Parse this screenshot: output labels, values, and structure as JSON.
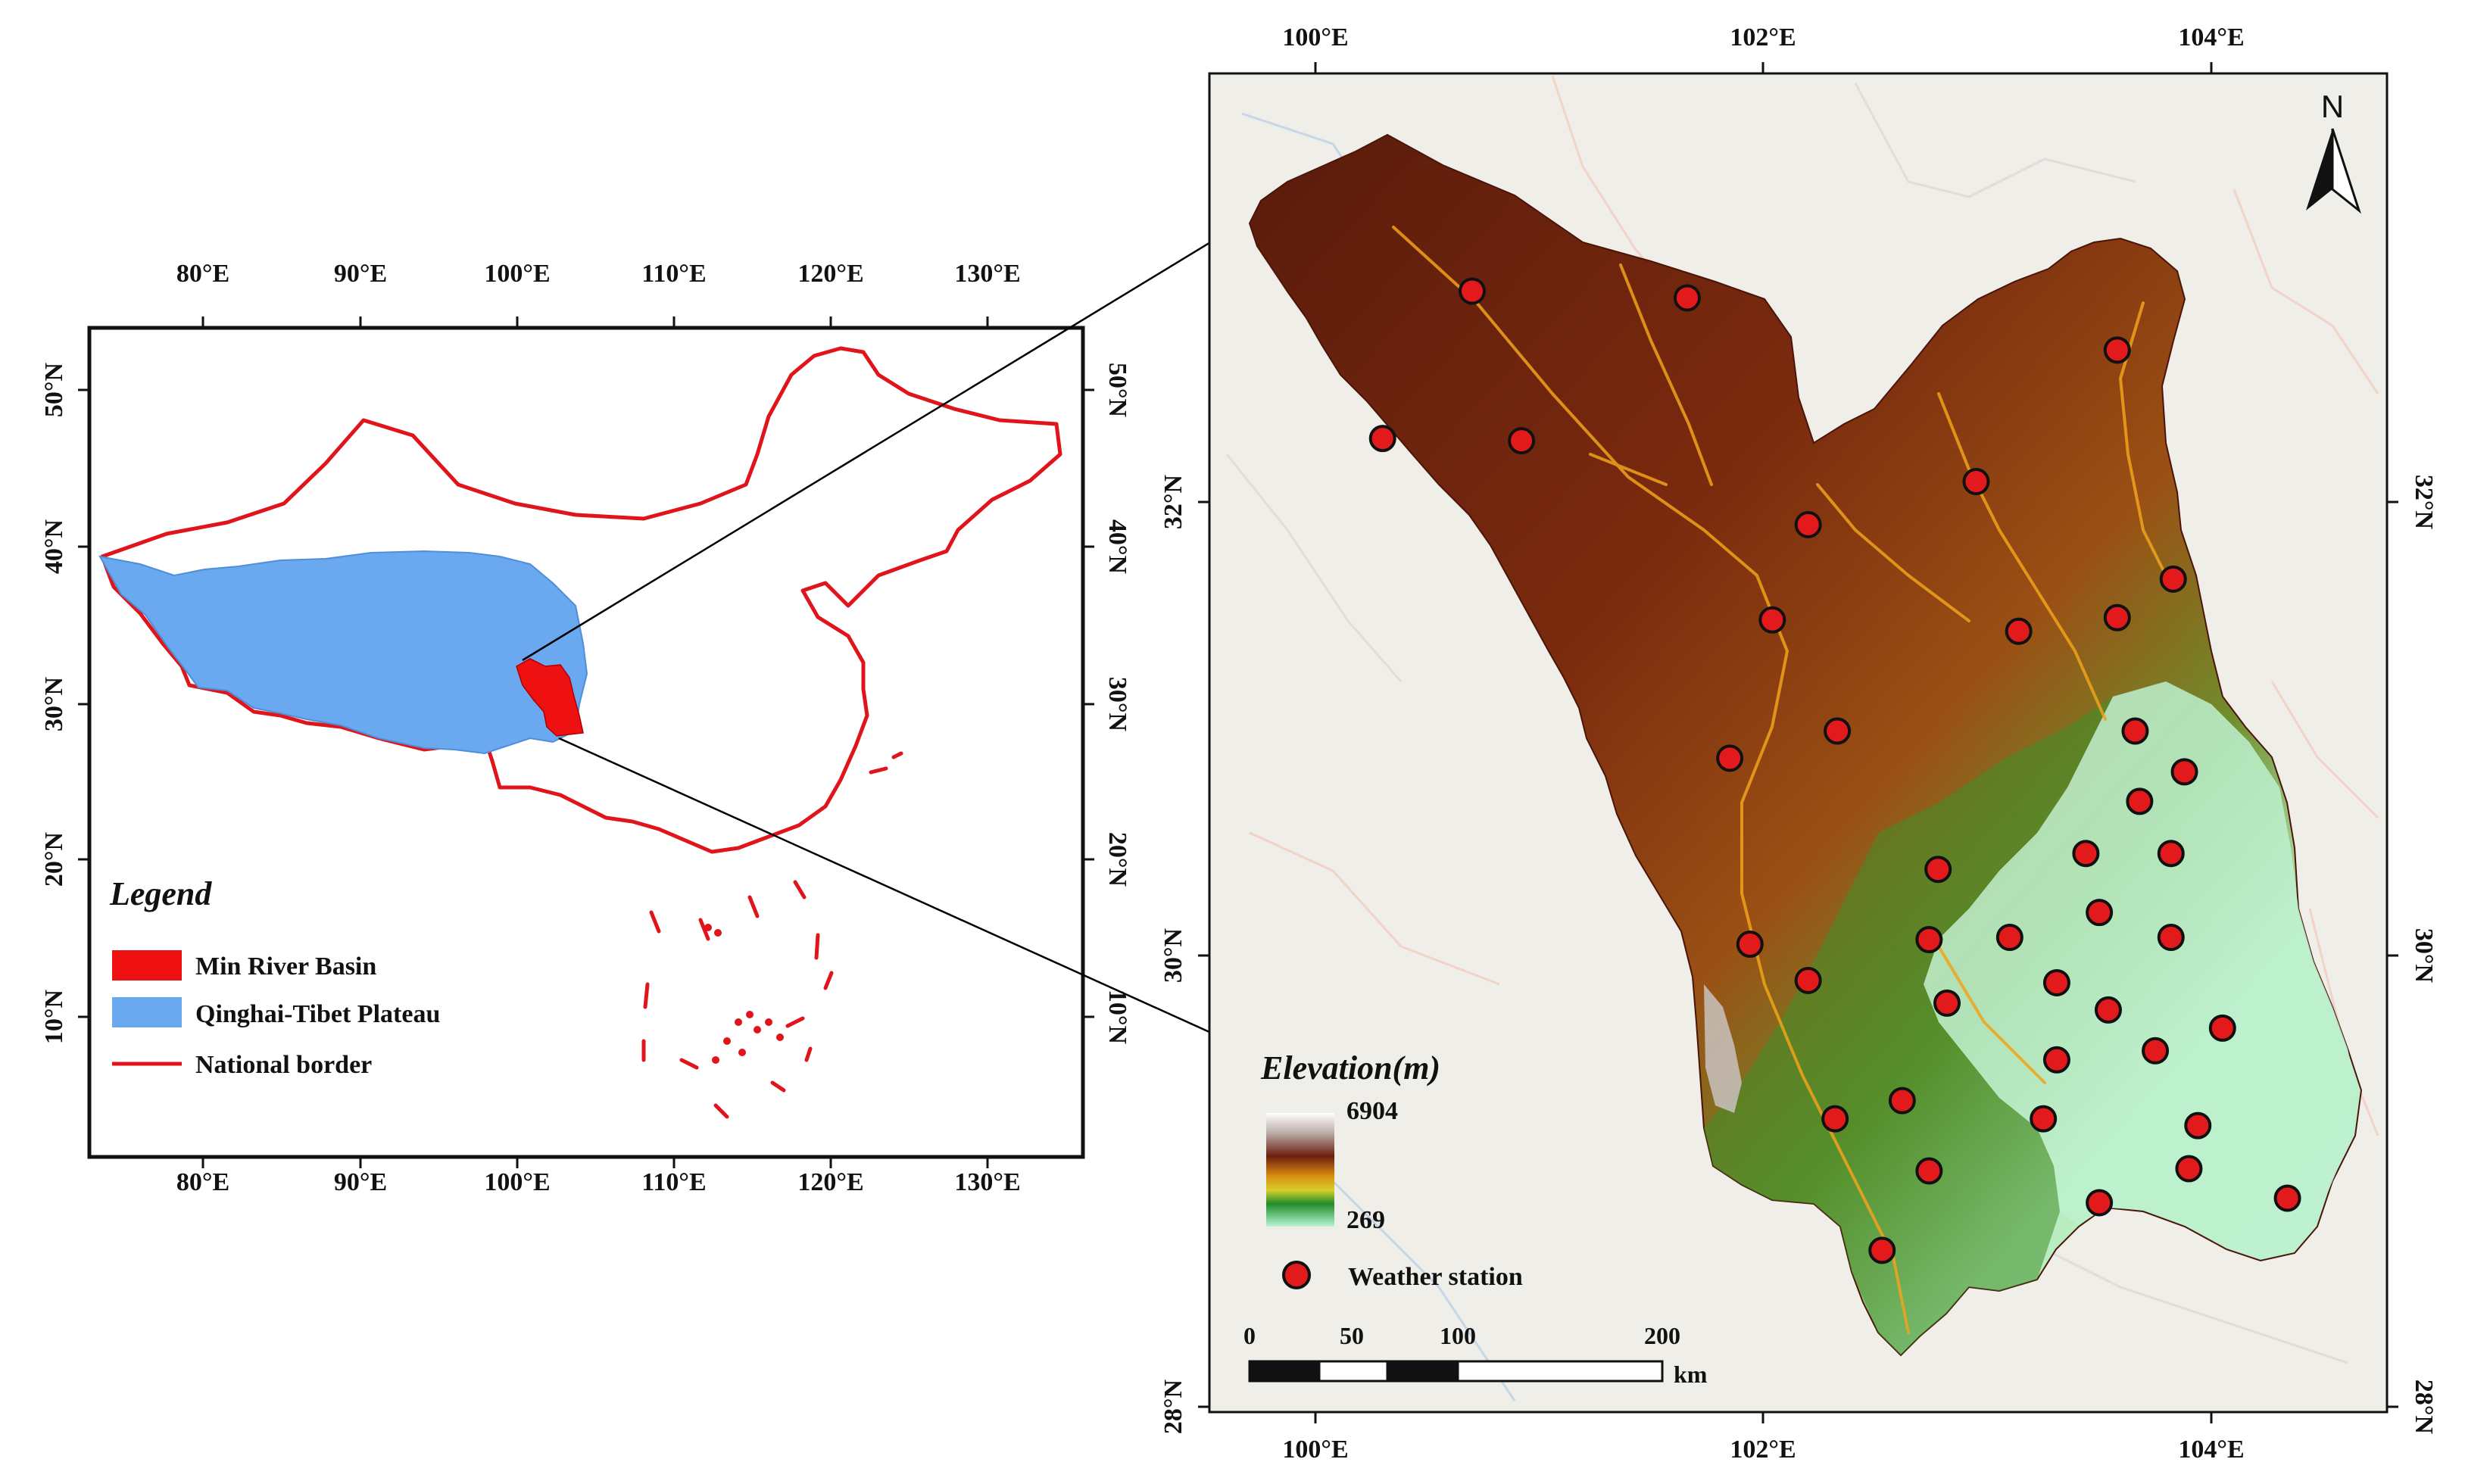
{
  "colors": {
    "national_border": "#e0141b",
    "qinghai_tibet": "#6aa8f0",
    "min_river_basin": "#ef1111",
    "basemap_bg": "#efeee9",
    "station_fill": "#e31a1c"
  },
  "china_map": {
    "top_ticks": [
      "80°E",
      "90°E",
      "100°E",
      "110°E",
      "120°E",
      "130°E"
    ],
    "bottom_ticks": [
      "80°E",
      "90°E",
      "100°E",
      "110°E",
      "120°E",
      "130°E"
    ],
    "left_ticks": [
      "50°N",
      "40°N",
      "30°N",
      "20°N",
      "10°N"
    ],
    "right_ticks": [
      "50°N",
      "40°N",
      "30°N",
      "20°N",
      "10°N"
    ],
    "legend": {
      "title": "Legend",
      "items": [
        {
          "label": "Min River Basin",
          "symbol": "red-box"
        },
        {
          "label": "Qinghai-Tibet Plateau",
          "symbol": "blue-box"
        },
        {
          "label": "National border",
          "symbol": "red-line"
        }
      ]
    }
  },
  "basin_map": {
    "top_ticks": [
      "100°E",
      "102°E",
      "104°E"
    ],
    "bottom_ticks": [
      "100°E",
      "102°E",
      "104°E"
    ],
    "left_ticks": [
      "32°N",
      "30°N",
      "28°N"
    ],
    "right_ticks": [
      "32°N",
      "30°N",
      "28°N"
    ],
    "north_label": "N",
    "elevation_legend": {
      "title": "Elevation(m)",
      "max_label": "6904",
      "min_label": "269"
    },
    "station_legend_label": "Weather station",
    "scale_bar": {
      "labels": [
        "0",
        "50",
        "100",
        "200"
      ],
      "unit": "km"
    },
    "stations": [
      {
        "lon": 100.7,
        "lat": 32.93
      },
      {
        "lon": 101.66,
        "lat": 32.9
      },
      {
        "lon": 100.3,
        "lat": 32.28
      },
      {
        "lon": 100.92,
        "lat": 32.27
      },
      {
        "lon": 103.58,
        "lat": 32.67
      },
      {
        "lon": 102.95,
        "lat": 32.09
      },
      {
        "lon": 102.2,
        "lat": 31.9
      },
      {
        "lon": 103.83,
        "lat": 31.66
      },
      {
        "lon": 102.04,
        "lat": 31.48
      },
      {
        "lon": 102.33,
        "lat": 30.99
      },
      {
        "lon": 101.85,
        "lat": 30.87
      },
      {
        "lon": 103.14,
        "lat": 31.43
      },
      {
        "lon": 103.58,
        "lat": 31.49
      },
      {
        "lon": 103.66,
        "lat": 30.99
      },
      {
        "lon": 103.88,
        "lat": 30.81
      },
      {
        "lon": 103.68,
        "lat": 30.68
      },
      {
        "lon": 103.44,
        "lat": 30.45
      },
      {
        "lon": 103.82,
        "lat": 30.45
      },
      {
        "lon": 102.78,
        "lat": 30.38
      },
      {
        "lon": 103.5,
        "lat": 30.19
      },
      {
        "lon": 101.94,
        "lat": 30.05
      },
      {
        "lon": 102.74,
        "lat": 30.07
      },
      {
        "lon": 103.1,
        "lat": 30.08
      },
      {
        "lon": 103.82,
        "lat": 30.08
      },
      {
        "lon": 102.2,
        "lat": 29.89
      },
      {
        "lon": 102.82,
        "lat": 29.79
      },
      {
        "lon": 103.31,
        "lat": 29.88
      },
      {
        "lon": 103.54,
        "lat": 29.76
      },
      {
        "lon": 104.05,
        "lat": 29.68
      },
      {
        "lon": 103.75,
        "lat": 29.58
      },
      {
        "lon": 103.31,
        "lat": 29.54
      },
      {
        "lon": 102.62,
        "lat": 29.36
      },
      {
        "lon": 102.32,
        "lat": 29.28
      },
      {
        "lon": 103.25,
        "lat": 29.28
      },
      {
        "lon": 103.94,
        "lat": 29.25
      },
      {
        "lon": 102.74,
        "lat": 29.05
      },
      {
        "lon": 103.9,
        "lat": 29.06
      },
      {
        "lon": 103.5,
        "lat": 28.91
      },
      {
        "lon": 104.34,
        "lat": 28.93
      },
      {
        "lon": 102.53,
        "lat": 28.7
      }
    ]
  }
}
